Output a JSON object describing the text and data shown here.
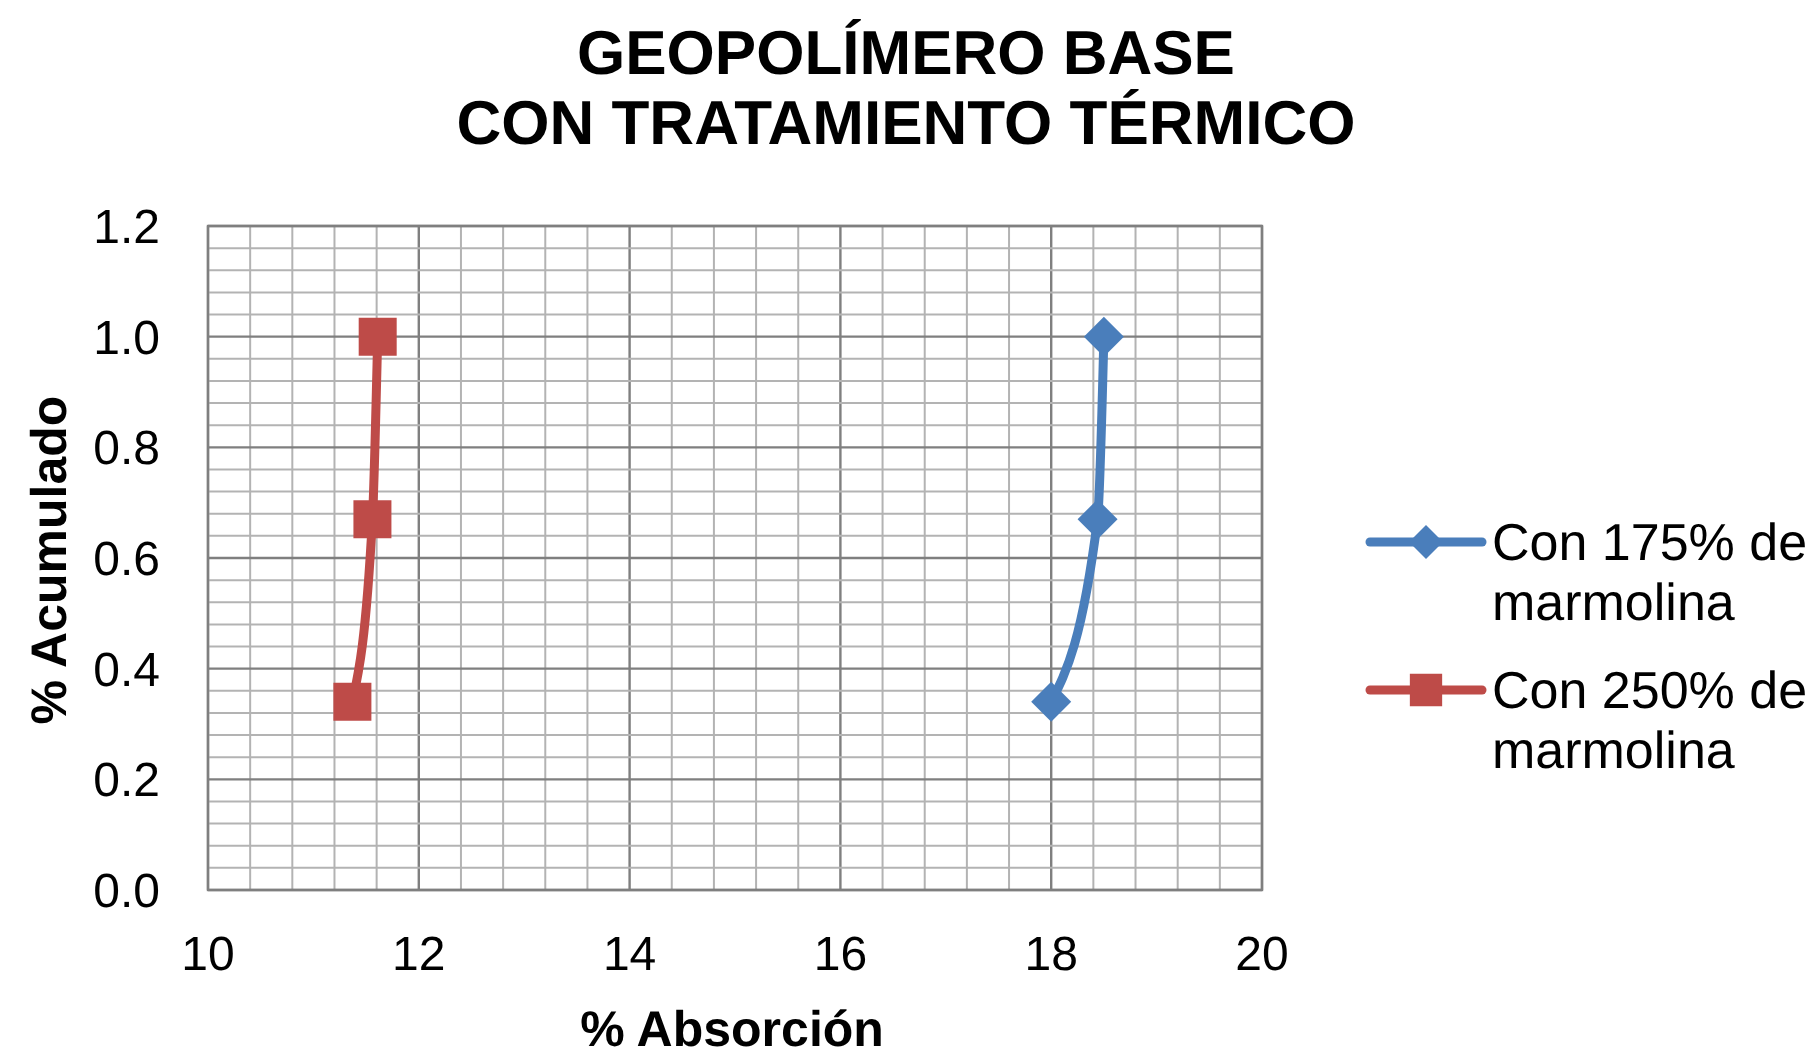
{
  "chart_data": {
    "type": "line",
    "title": "GEOPOLÍMERO BASE\nCON TRATAMIENTO TÉRMICO",
    "xlabel": "% Absorción",
    "ylabel": "% Acumulado",
    "series": [
      {
        "name": "Con 175% de marmolina",
        "color": "#4a7ebb",
        "marker": "diamond",
        "x": [
          18.0,
          18.44,
          18.5
        ],
        "values": [
          0.34,
          0.67,
          1.0
        ]
      },
      {
        "name": "Con 250% de marmolina",
        "color": "#be4b48",
        "marker": "square",
        "x": [
          11.37,
          11.56,
          11.61
        ],
        "values": [
          0.34,
          0.67,
          1.0
        ]
      }
    ],
    "xlim": [
      10,
      20
    ],
    "xticks": [
      10,
      {
        "value": 10.4,
        "label": null
      },
      {
        "value": 10.8,
        "label": null
      },
      {
        "value": 11.2,
        "label": null
      },
      {
        "value": 11.6,
        "label": null
      },
      12,
      {
        "value": 12.4,
        "label": null
      },
      {
        "value": 12.8,
        "label": null
      },
      {
        "value": 13.2,
        "label": null
      },
      {
        "value": 13.6,
        "label": null
      },
      14,
      {
        "value": 14.4,
        "label": null
      },
      {
        "value": 14.8,
        "label": null
      },
      {
        "value": 15.2,
        "label": null
      },
      {
        "value": 15.6,
        "label": null
      },
      16,
      {
        "value": 16.4,
        "label": null
      },
      {
        "value": 16.8,
        "label": null
      },
      {
        "value": 17.2,
        "label": null
      },
      {
        "value": 17.6,
        "label": null
      },
      18,
      {
        "value": 18.4,
        "label": null
      },
      {
        "value": 18.8,
        "label": null
      },
      {
        "value": 19.2,
        "label": null
      },
      {
        "value": 19.6,
        "label": null
      },
      20
    ],
    "ylim": [
      0,
      1.2
    ],
    "yticks": [
      {
        "value": 0,
        "label": "0.0"
      },
      {
        "value": 0.04,
        "label": null
      },
      {
        "value": 0.08,
        "label": null
      },
      {
        "value": 0.12,
        "label": null
      },
      {
        "value": 0.16,
        "label": null
      },
      0.2,
      {
        "value": 0.24,
        "label": null
      },
      {
        "value": 0.28,
        "label": null
      },
      {
        "value": 0.32,
        "label": null
      },
      {
        "value": 0.36,
        "label": null
      },
      0.4,
      {
        "value": 0.44,
        "label": null
      },
      {
        "value": 0.48,
        "label": null
      },
      {
        "value": 0.52,
        "label": null
      },
      {
        "value": 0.56,
        "label": null
      },
      0.6,
      {
        "value": 0.64,
        "label": null
      },
      {
        "value": 0.68,
        "label": null
      },
      {
        "value": 0.72,
        "label": null
      },
      {
        "value": 0.76,
        "label": null
      },
      0.8,
      {
        "value": 0.84,
        "label": null
      },
      {
        "value": 0.88,
        "label": null
      },
      {
        "value": 0.92,
        "label": null
      },
      {
        "value": 0.96,
        "label": null
      },
      {
        "value": 1,
        "label": "1.0"
      },
      {
        "value": 1.04,
        "label": null
      },
      {
        "value": 1.08,
        "label": null
      },
      {
        "value": 1.12,
        "label": null
      },
      {
        "value": 1.16,
        "label": null
      },
      1.2
    ],
    "grid": true,
    "legend": "right",
    "line_style": "solid"
  }
}
